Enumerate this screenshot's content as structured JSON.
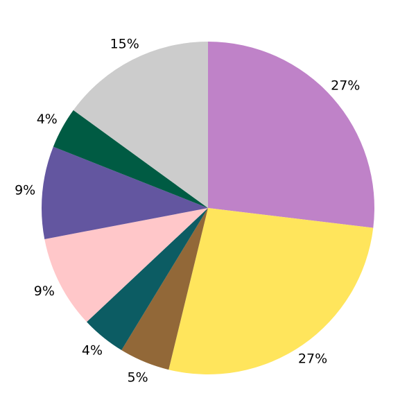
{
  "chart_data": {
    "type": "pie",
    "start_angle": "top",
    "direction": "clockwise",
    "legend": "none",
    "slices": [
      {
        "value": 26.9,
        "label": "27%",
        "color": "#BF82C8"
      },
      {
        "value": 26.9,
        "label": "27%",
        "color": "#FFE55C"
      },
      {
        "value": 4.9,
        "label": "5%",
        "color": "#926838"
      },
      {
        "value": 4.3,
        "label": "4%",
        "color": "#0C5C63"
      },
      {
        "value": 9.0,
        "label": "9%",
        "color": "#FFC7C9"
      },
      {
        "value": 9.0,
        "label": "9%",
        "color": "#6356A0"
      },
      {
        "value": 4.0,
        "label": "4%",
        "color": "#005B43"
      },
      {
        "value": 15.0,
        "label": "15%",
        "color": "#CCCCCC"
      }
    ]
  }
}
